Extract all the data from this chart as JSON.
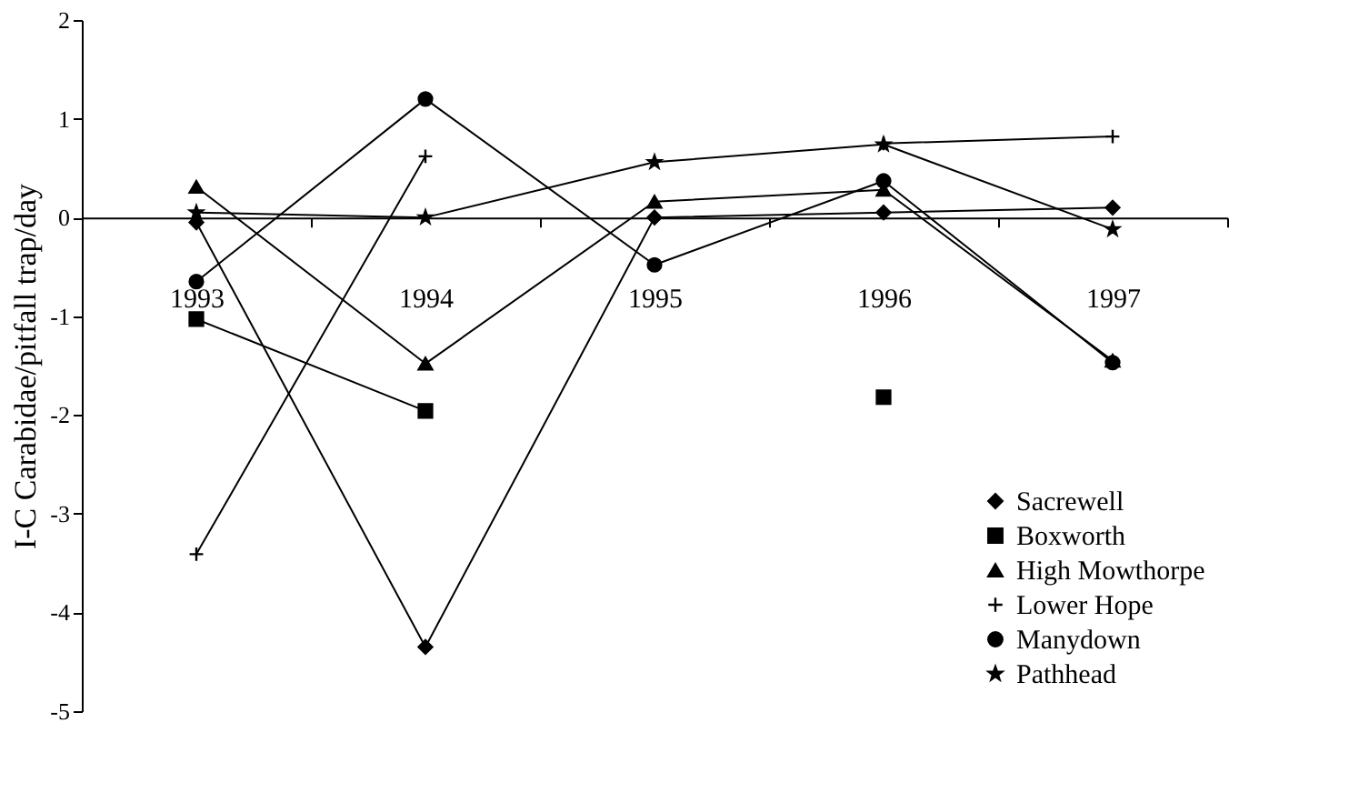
{
  "chart_data": {
    "type": "line",
    "ylabel": "I-C Carabidae/pitfall trap/day",
    "categories": [
      "1993",
      "1994",
      "1995",
      "1996",
      "1997"
    ],
    "ylim": [
      -5,
      2
    ],
    "yticks": [
      -5,
      -4,
      -3,
      -2,
      -1,
      0,
      1,
      2
    ],
    "grid": false,
    "legend": "bottom right",
    "series": [
      {
        "name": "Sacrewell",
        "color": "#000000",
        "marker": "diamond",
        "values": [
          -0.05,
          -4.35,
          0.0,
          0.05,
          0.1
        ]
      },
      {
        "name": "Boxworth",
        "color": "#000000",
        "marker": "square",
        "values": [
          -1.03,
          -1.96,
          null,
          -1.82,
          null
        ]
      },
      {
        "name": "High Mowthorpe",
        "color": "#000000",
        "marker": "triangle",
        "values": [
          0.31,
          -1.48,
          0.16,
          0.28,
          -1.45
        ]
      },
      {
        "name": "Lower Hope",
        "color": "#000000",
        "marker": "cross",
        "values": [
          -3.41,
          0.62,
          null,
          0.75,
          0.82
        ]
      },
      {
        "name": "Manydown",
        "color": "#000000",
        "marker": "circle",
        "values": [
          -0.65,
          1.2,
          -0.48,
          0.37,
          -1.47
        ]
      },
      {
        "name": "Pathhead",
        "color": "#000000",
        "marker": "star",
        "values": [
          0.05,
          0.0,
          0.56,
          0.74,
          -0.12
        ]
      }
    ]
  }
}
